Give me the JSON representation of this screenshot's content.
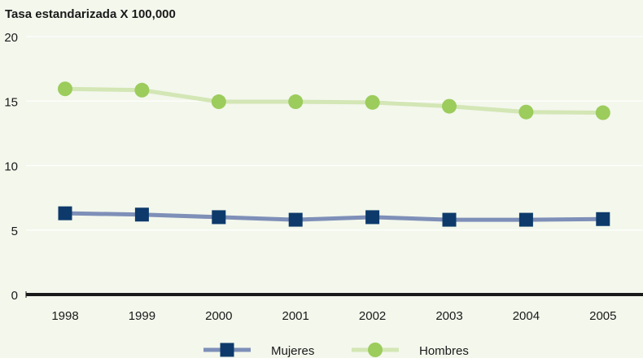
{
  "chart_data": {
    "type": "line",
    "title": "Tasa estandarizada X 100,000",
    "xlabel": "",
    "ylabel": "",
    "categories": [
      "1998",
      "1999",
      "2000",
      "2001",
      "2002",
      "2003",
      "2004",
      "2005"
    ],
    "ylim": [
      0,
      20
    ],
    "yticks": [
      "0",
      "5",
      "10",
      "15",
      "20"
    ],
    "grid": true,
    "legend_position": "bottom",
    "series": [
      {
        "name": "Mujeres",
        "marker": "square",
        "line_color": "#7e8fb8",
        "marker_color": "#0d3a6b",
        "values": [
          6.3,
          6.2,
          6.0,
          5.8,
          6.0,
          5.8,
          5.8,
          5.85
        ]
      },
      {
        "name": "Hombres",
        "marker": "circle",
        "line_color": "#d3e6b5",
        "marker_color": "#9ccc5c",
        "values": [
          15.95,
          15.85,
          14.95,
          14.95,
          14.9,
          14.6,
          14.15,
          14.1
        ]
      }
    ],
    "colors": {
      "background": "#f3f7ec",
      "grid": "#ffffff",
      "axis": "#1a1a1a"
    }
  }
}
